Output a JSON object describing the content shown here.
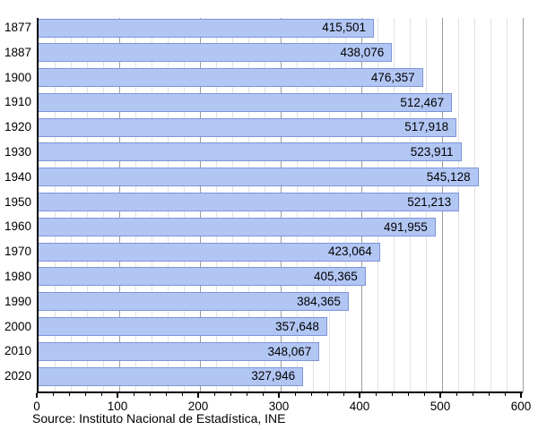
{
  "source_text": "Source: Instituto Nacional de Estadística, INE",
  "chart_data": {
    "type": "bar",
    "orientation": "horizontal",
    "title": "",
    "xlabel": "",
    "ylabel": "",
    "categories": [
      "1877",
      "1887",
      "1900",
      "1910",
      "1920",
      "1930",
      "1940",
      "1950",
      "1960",
      "1970",
      "1980",
      "1990",
      "2000",
      "2010",
      "2020"
    ],
    "values": [
      415501,
      438076,
      476357,
      512467,
      517918,
      523911,
      545128,
      521213,
      491955,
      423064,
      405365,
      384365,
      357648,
      348067,
      327946
    ],
    "value_labels": [
      "415,501",
      "438,076",
      "476,357",
      "512,467",
      "517,918",
      "523,911",
      "545,128",
      "521,213",
      "491,955",
      "423,064",
      "405,365",
      "384,365",
      "357,648",
      "348,067",
      "327,946"
    ],
    "xlim": [
      0,
      600000
    ],
    "x_tick_values": [
      0,
      100000,
      200000,
      300000,
      400000,
      500000,
      600000
    ],
    "x_tick_labels": [
      "0",
      "100",
      "200",
      "300",
      "400",
      "500",
      "600"
    ],
    "minor_tick_step": 20000,
    "grid": "vertical: minor every 20,000 (light gray), major every 100,000 (dark gray)",
    "legend": "none",
    "colors": {
      "bar_fill": "#b2c6f4",
      "bar_border": "#7d95d8",
      "minor_grid": "#e2e2e2",
      "major_grid": "#9c9c9c",
      "axis": "#000000",
      "text": "#000000",
      "background": "#ffffff"
    }
  }
}
